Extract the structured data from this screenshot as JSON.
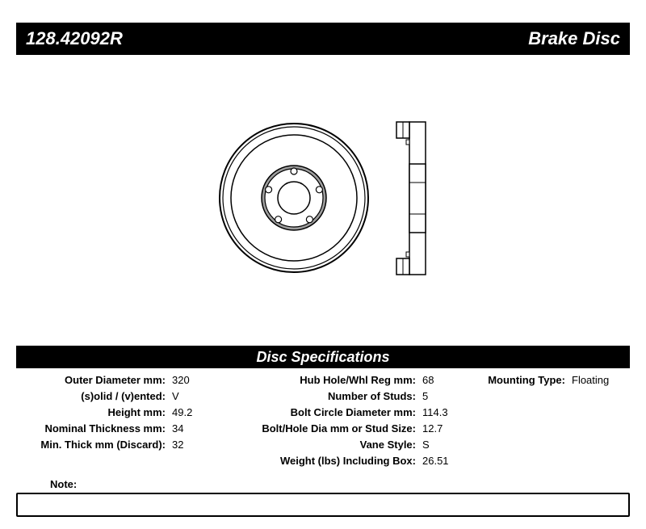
{
  "header": {
    "part_number": "128.42092R",
    "product_type": "Brake Disc"
  },
  "spec_header": "Disc Specifications",
  "diagram": {
    "rotor_face": {
      "outer_diameter": 185,
      "disc_diameter": 155,
      "hub_diameter": 80,
      "hole_diameter": 40,
      "stud_circle_diameter": 66,
      "stud_hole_diameter": 8,
      "num_studs": 5,
      "stroke": "#000000",
      "fill": "#ffffff",
      "shade": "#9e9e9e"
    },
    "rotor_side": {
      "width": 34,
      "height": 188,
      "hub_width": 20,
      "stroke": "#000000"
    }
  },
  "specs_col1": [
    {
      "label": "Outer Diameter mm:",
      "value": "320"
    },
    {
      "label": "(s)olid / (v)ented:",
      "value": "V"
    },
    {
      "label": "Height mm:",
      "value": "49.2"
    },
    {
      "label": "Nominal Thickness mm:",
      "value": "34"
    },
    {
      "label": "Min. Thick mm (Discard):",
      "value": "32"
    }
  ],
  "specs_col2": [
    {
      "label": "Hub Hole/Whl Reg mm:",
      "value": "68"
    },
    {
      "label": "Number of Studs:",
      "value": "5"
    },
    {
      "label": "Bolt Circle Diameter mm:",
      "value": "114.3"
    },
    {
      "label": "Bolt/Hole Dia mm or Stud Size:",
      "value": "12.7"
    },
    {
      "label": "Vane Style:",
      "value": "S"
    },
    {
      "label": "Weight (lbs) Including Box:",
      "value": "26.51"
    }
  ],
  "specs_col3": [
    {
      "label": "Mounting Type:",
      "value": "Floating"
    }
  ],
  "note_label": "Note:"
}
